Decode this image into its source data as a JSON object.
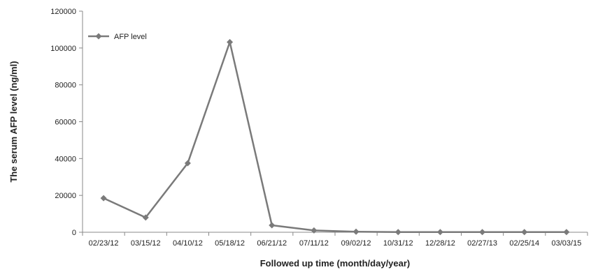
{
  "chart_data": {
    "type": "line",
    "title": "",
    "xlabel": "Followed up time (month/day/year)",
    "ylabel": "The serum AFP level (ng/ml)",
    "categories": [
      "02/23/12",
      "03/15/12",
      "04/10/12",
      "05/18/12",
      "06/21/12",
      "07/11/12",
      "09/02/12",
      "10/31/12",
      "12/28/12",
      "02/27/13",
      "02/25/14",
      "03/03/15"
    ],
    "series": [
      {
        "name": "AFP level",
        "values": [
          18500,
          8000,
          37500,
          103200,
          3800,
          1000,
          300,
          100,
          100,
          100,
          100,
          100
        ]
      }
    ],
    "ylim": [
      0,
      120000
    ],
    "yticks": [
      0,
      20000,
      40000,
      60000,
      80000,
      100000,
      120000
    ],
    "ytick_labels": [
      "0",
      "20000",
      "40000",
      "60000",
      "80000",
      "100000",
      "120000"
    ],
    "grid": false,
    "legend_position": "top-left",
    "colors": {
      "line": "#7a7a7a",
      "marker": "#7a7a7a",
      "axis": "#888888"
    },
    "marker": "diamond"
  }
}
